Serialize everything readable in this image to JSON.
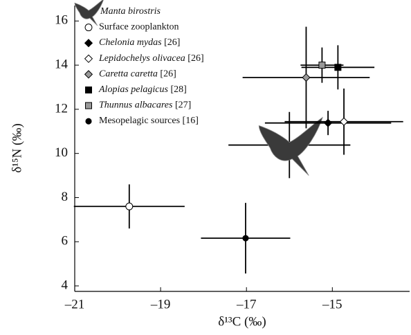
{
  "chart_data": {
    "type": "scatter",
    "x_label": "δ¹³C (‰)",
    "y_label": "δ¹⁵N (‰)",
    "xlim": [
      -21,
      -13.2
    ],
    "ylim": [
      3.75,
      16.7
    ],
    "xticks": [
      {
        "value": -21,
        "label": "–21"
      },
      {
        "value": -19,
        "label": "–19"
      },
      {
        "value": -17,
        "label": "–17"
      },
      {
        "value": -15,
        "label": "–15"
      }
    ],
    "yticks": [
      4,
      6,
      8,
      10,
      12,
      14,
      16
    ],
    "series": [
      {
        "name": "Manta birostris",
        "marker": "manta",
        "color": "#3a3a3a",
        "x": [
          -16.0
        ],
        "values": [
          10.38
        ],
        "xerr": [
          1.42
        ],
        "yerr": [
          1.5
        ]
      },
      {
        "name": "Surface zooplankton",
        "marker": "circle",
        "color": "#ffffff",
        "x": [
          -19.73
        ],
        "values": [
          7.6
        ],
        "xerr": [
          1.29
        ],
        "yerr": [
          1.0
        ]
      },
      {
        "name": "Chelonia mydas",
        "ref": "[26]",
        "marker": "diamond",
        "color": "#000000",
        "x": [
          -15.1
        ],
        "values": [
          11.38
        ],
        "xerr": [
          1.47
        ],
        "yerr": [
          0.55
        ]
      },
      {
        "name": "Lepidochelys olivacea",
        "ref": "[26]",
        "marker": "diamond",
        "color": "#ffffff",
        "x": [
          -14.73
        ],
        "values": [
          11.44
        ],
        "xerr": [
          1.38
        ],
        "yerr": [
          1.5
        ]
      },
      {
        "name": "Caretta caretta",
        "ref": "[26]",
        "marker": "diamond",
        "color": "#999999",
        "x": [
          -15.61
        ],
        "values": [
          13.44
        ],
        "xerr": [
          1.48
        ],
        "yerr": [
          2.3
        ]
      },
      {
        "name": "Alopias pelagicus",
        "ref": "[28]",
        "marker": "square",
        "color": "#000000",
        "x": [
          -14.87
        ],
        "values": [
          13.9
        ],
        "xerr": [
          0.85
        ],
        "yerr": [
          1.0
        ]
      },
      {
        "name": "Thunnus albacares",
        "ref": "[27]",
        "marker": "square",
        "color": "#999999",
        "x": [
          -15.24
        ],
        "values": [
          14.0
        ],
        "xerr": [
          0.5
        ],
        "yerr": [
          0.8
        ]
      },
      {
        "name": "Mesopelagic sources",
        "ref": "[16]",
        "marker": "dot",
        "color": "#000000",
        "x": [
          -17.02
        ],
        "values": [
          6.16
        ],
        "xerr": [
          1.04
        ],
        "yerr": [
          1.6
        ]
      }
    ]
  }
}
